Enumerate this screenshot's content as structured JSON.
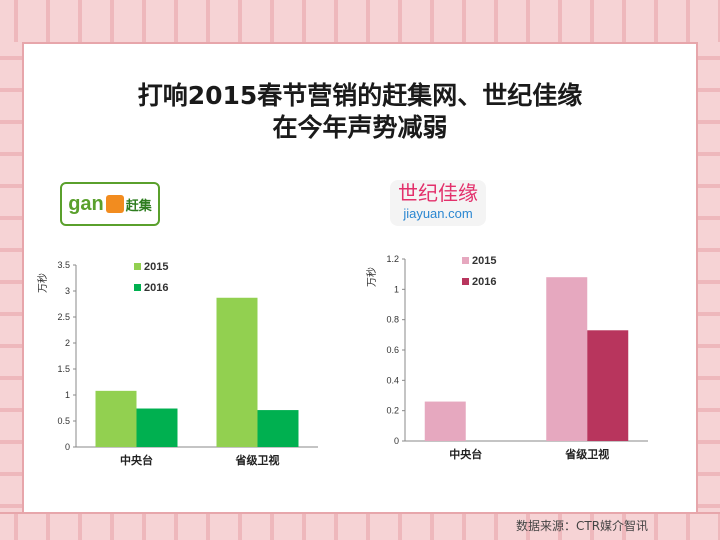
{
  "title_lines": [
    "打响2015春节营销的赶集网、世纪佳缘",
    "在今年声势减弱"
  ],
  "logos": {
    "ganji": {
      "latin": "gan",
      "chinese": "赶集"
    },
    "jiayuan": {
      "chinese": "世纪佳缘",
      "latin": "jiayuan.com"
    }
  },
  "source": "数据来源：CTR媒介智讯",
  "colors": {
    "ganji_2015": "#92d050",
    "ganji_2016": "#00b050",
    "jiayuan_2015": "#e6a8bf",
    "jiayuan_2016": "#b8355d"
  },
  "chart_data": [
    {
      "type": "bar",
      "unit_label": "万秒",
      "categories": [
        "中央台",
        "省级卫视"
      ],
      "series": [
        {
          "name": "2015",
          "values": [
            1.08,
            2.87
          ]
        },
        {
          "name": "2016",
          "values": [
            0.74,
            0.71
          ]
        }
      ],
      "ylim": [
        0,
        3.5
      ],
      "yticks": [
        "0",
        "0.5",
        "1",
        "1.5",
        "2",
        "2.5",
        "3",
        "3.5"
      ],
      "legend": "top-left",
      "grid": false
    },
    {
      "type": "bar",
      "unit_label": "万秒",
      "categories": [
        "中央台",
        "省级卫视"
      ],
      "series": [
        {
          "name": "2015",
          "values": [
            0.26,
            1.08
          ]
        },
        {
          "name": "2016",
          "values": [
            0,
            0.73
          ]
        }
      ],
      "ylim": [
        0,
        1.2
      ],
      "yticks": [
        "0",
        "0.2",
        "0.4",
        "0.6",
        "0.8",
        "1",
        "1.2"
      ],
      "legend": "top-left",
      "grid": false
    }
  ]
}
